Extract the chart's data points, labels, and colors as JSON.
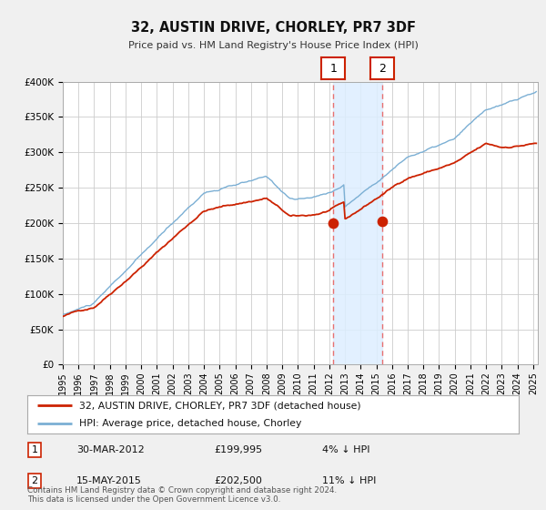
{
  "title": "32, AUSTIN DRIVE, CHORLEY, PR7 3DF",
  "subtitle": "Price paid vs. HM Land Registry's House Price Index (HPI)",
  "ylim": [
    0,
    400000
  ],
  "xlim_start": 1995.0,
  "xlim_end": 2025.3,
  "yticks": [
    0,
    50000,
    100000,
    150000,
    200000,
    250000,
    300000,
    350000,
    400000
  ],
  "ytick_labels": [
    "£0",
    "£50K",
    "£100K",
    "£150K",
    "£200K",
    "£250K",
    "£300K",
    "£350K",
    "£400K"
  ],
  "sale1_date": 2012.247,
  "sale1_price": 199995,
  "sale1_date_str": "30-MAR-2012",
  "sale1_price_str": "£199,995",
  "sale1_pct": "4% ↓ HPI",
  "sale2_date": 2015.372,
  "sale2_price": 202500,
  "sale2_date_str": "15-MAY-2015",
  "sale2_price_str": "£202,500",
  "sale2_pct": "11% ↓ HPI",
  "hpi_color": "#7bafd4",
  "price_color": "#cc2200",
  "vline_color": "#e87070",
  "legend_label_price": "32, AUSTIN DRIVE, CHORLEY, PR7 3DF (detached house)",
  "legend_label_hpi": "HPI: Average price, detached house, Chorley",
  "footer": "Contains HM Land Registry data © Crown copyright and database right 2024.\nThis data is licensed under the Open Government Licence v3.0.",
  "background_color": "#f0f0f0",
  "plot_background": "#ffffff",
  "grid_color": "#cccccc",
  "shade_color": "#ddeeff"
}
